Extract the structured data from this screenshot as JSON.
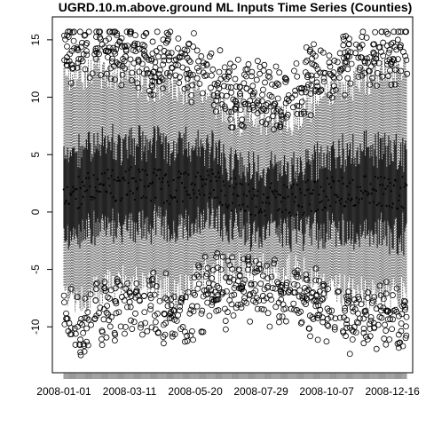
{
  "chart_data": {
    "type": "boxplot",
    "title": "UGRD.10.m.above.ground ML Inputs Time Series (Counties)",
    "xlabel": "",
    "ylabel": "",
    "x_range": [
      "2008-01-01",
      "2008-12-31"
    ],
    "x_tick_labels": [
      "2008-01-01",
      "2008-03-11",
      "2008-05-20",
      "2008-07-29",
      "2008-10-07",
      "2008-12-16"
    ],
    "y_ticks": [
      -10,
      -5,
      0,
      5,
      10,
      15
    ],
    "ylim": [
      -14,
      17
    ],
    "grid": false,
    "legend": "none",
    "box_count": 366,
    "median_profile": [
      {
        "date": "2008-01-01",
        "median": 1.5,
        "q1": -1.5,
        "q3": 4.5,
        "low": -8,
        "high": 12
      },
      {
        "date": "2008-02-01",
        "median": 2.0,
        "q1": -1.0,
        "q3": 5.0,
        "low": -7,
        "high": 12
      },
      {
        "date": "2008-03-01",
        "median": 2.5,
        "q1": -0.5,
        "q3": 5.5,
        "low": -6,
        "high": 12
      },
      {
        "date": "2008-04-01",
        "median": 2.5,
        "q1": -0.5,
        "q3": 5.5,
        "low": -6,
        "high": 11
      },
      {
        "date": "2008-05-01",
        "median": 2.0,
        "q1": -1.0,
        "q3": 5.0,
        "low": -7,
        "high": 11
      },
      {
        "date": "2008-06-01",
        "median": 2.5,
        "q1": 0.0,
        "q3": 5.0,
        "low": -5,
        "high": 10
      },
      {
        "date": "2008-07-01",
        "median": 1.5,
        "q1": -0.5,
        "q3": 3.5,
        "low": -5,
        "high": 8
      },
      {
        "date": "2008-08-01",
        "median": 1.0,
        "q1": -1.0,
        "q3": 3.0,
        "low": -5,
        "high": 8
      },
      {
        "date": "2008-09-01",
        "median": 1.0,
        "q1": -1.0,
        "q3": 3.0,
        "low": -5,
        "high": 8
      },
      {
        "date": "2008-10-01",
        "median": 1.5,
        "q1": -1.0,
        "q3": 4.0,
        "low": -6,
        "high": 10
      },
      {
        "date": "2008-11-01",
        "median": 2.0,
        "q1": -1.0,
        "q3": 5.0,
        "low": -7,
        "high": 11
      },
      {
        "date": "2008-12-01",
        "median": 2.0,
        "q1": -1.0,
        "q3": 5.0,
        "low": -7,
        "high": 12
      },
      {
        "date": "2008-12-31",
        "median": 1.5,
        "q1": -1.5,
        "q3": 4.5,
        "low": -7,
        "high": 12
      }
    ],
    "colors": {
      "box": "#000000",
      "outlier": "#000000",
      "background": "#ffffff"
    }
  }
}
